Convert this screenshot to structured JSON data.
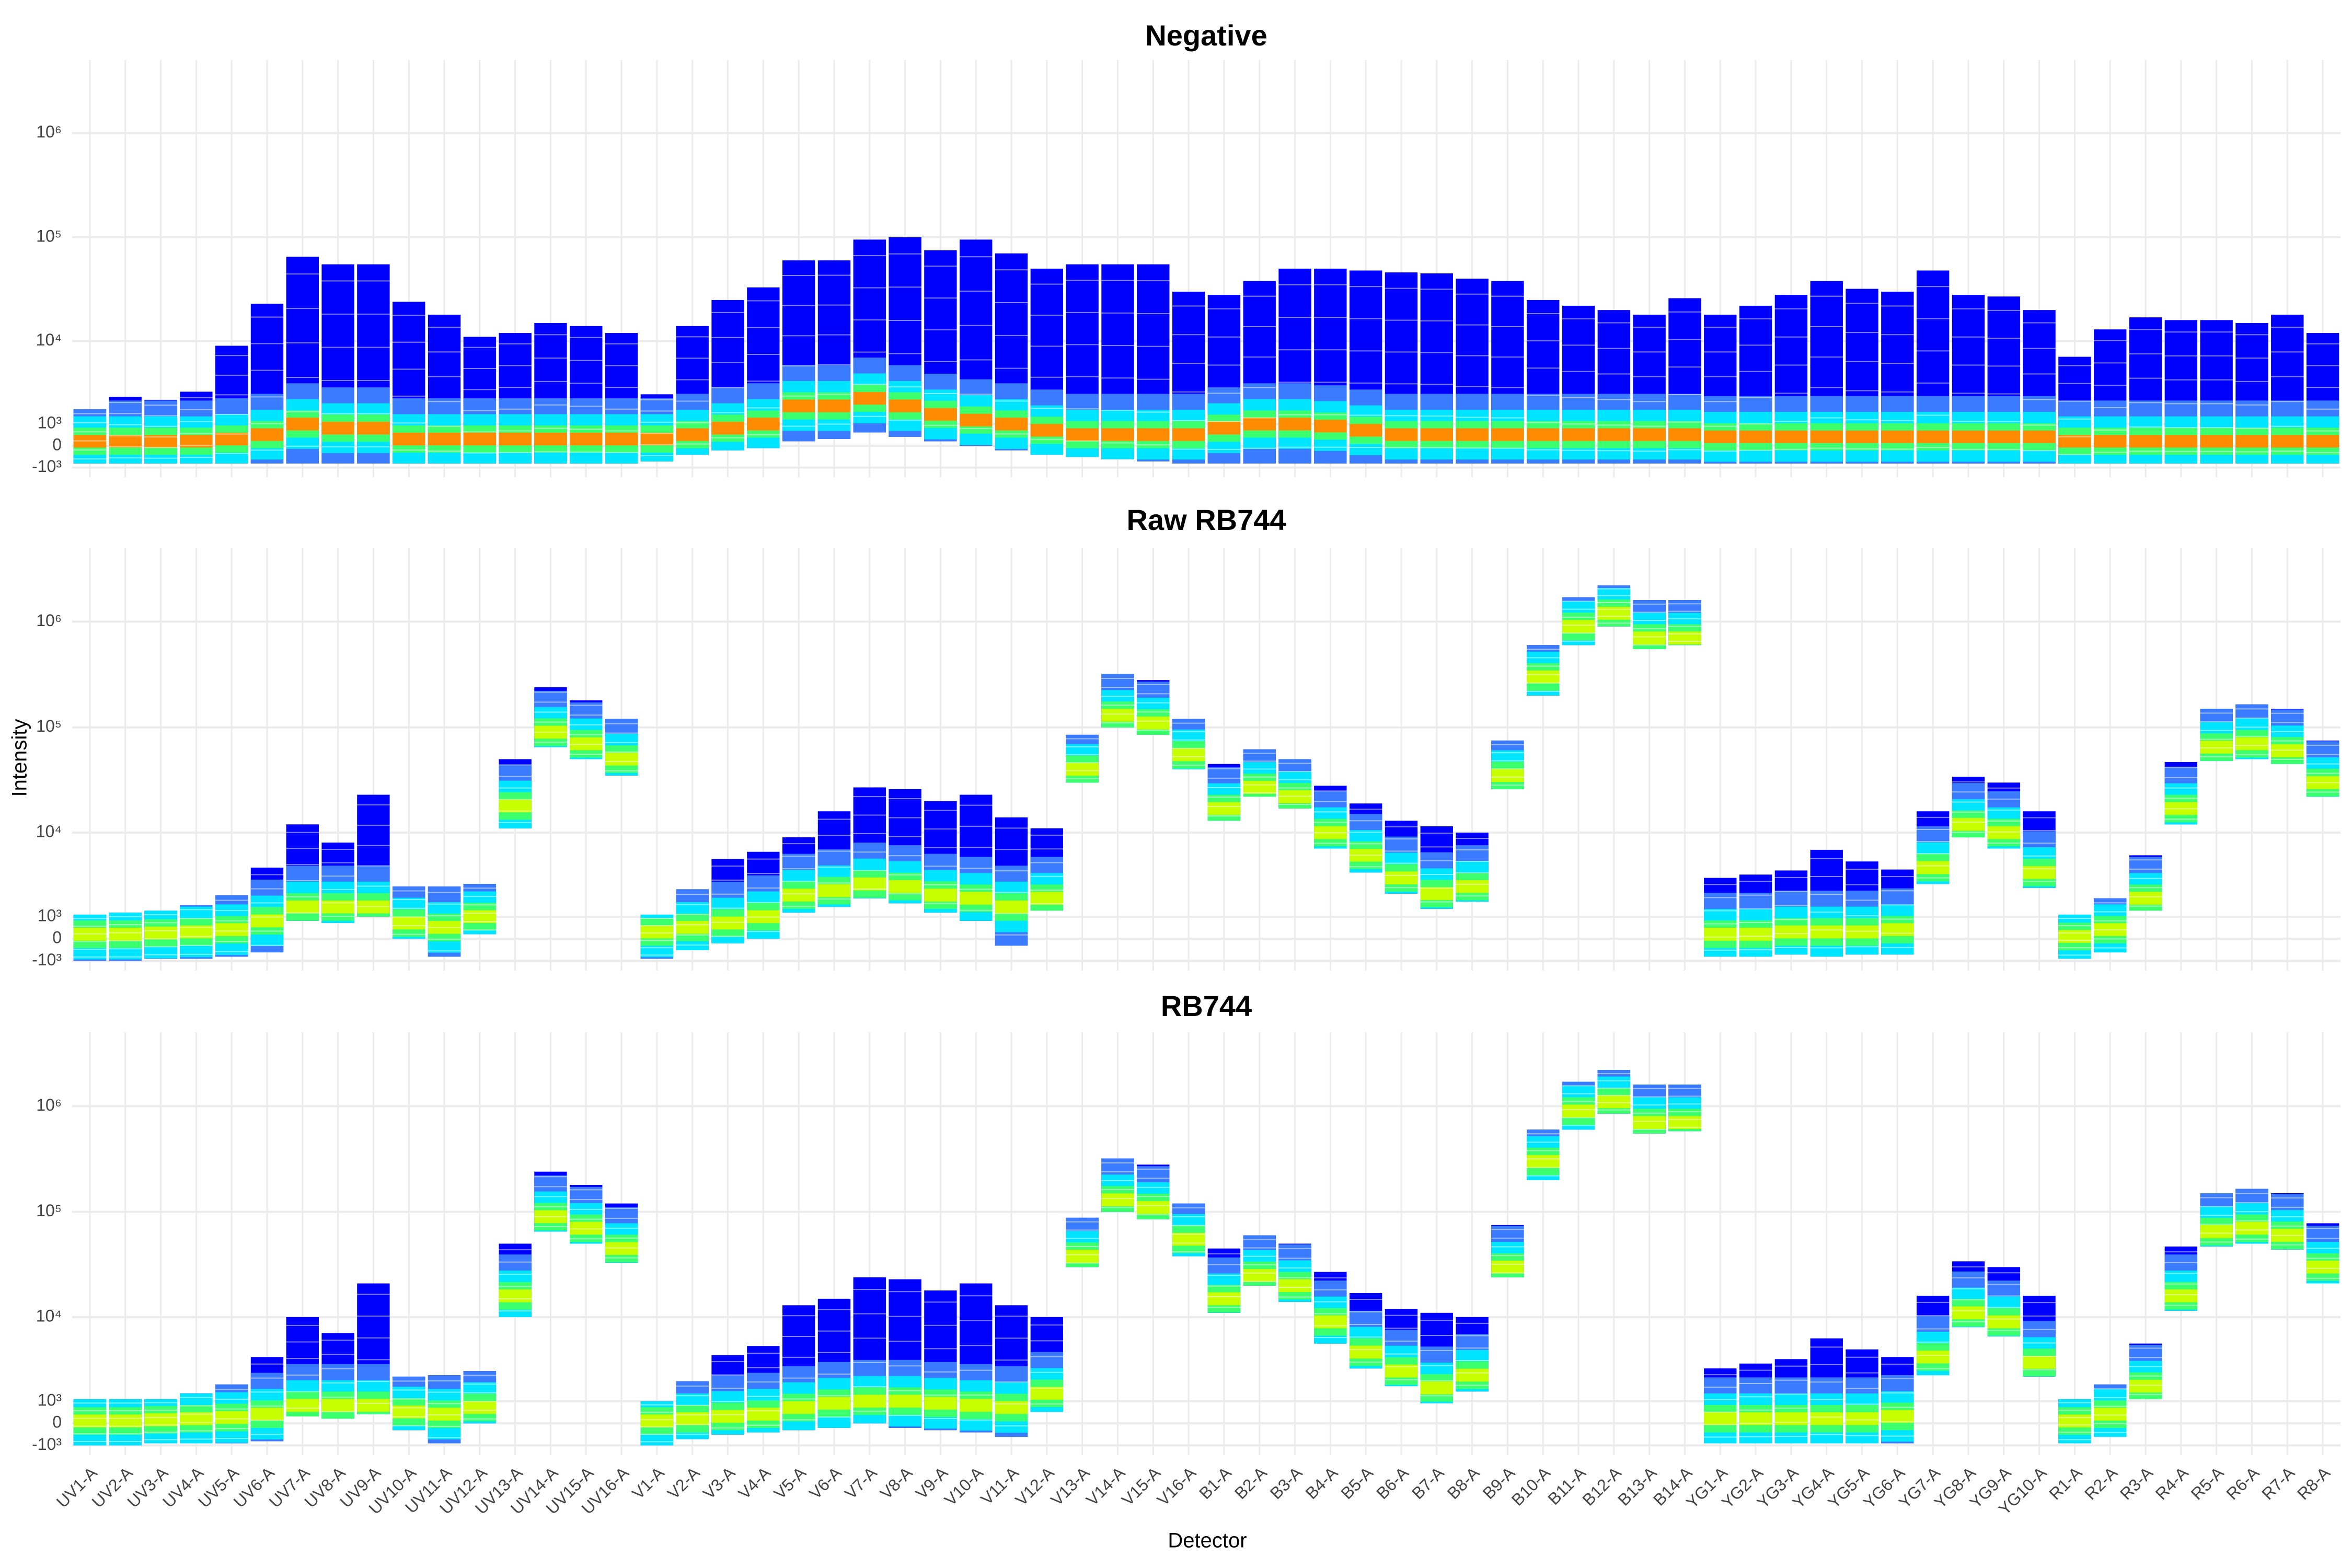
{
  "chart_data": {
    "type": "range",
    "scale": "asinh",
    "x_label": "Detector",
    "y_label": "Intensity",
    "categories": [
      "UV1-A",
      "UV2-A",
      "UV3-A",
      "UV4-A",
      "UV5-A",
      "UV6-A",
      "UV7-A",
      "UV8-A",
      "UV9-A",
      "UV10-A",
      "UV11-A",
      "UV12-A",
      "UV13-A",
      "UV14-A",
      "UV15-A",
      "UV16-A",
      "V1-A",
      "V2-A",
      "V3-A",
      "V4-A",
      "V5-A",
      "V6-A",
      "V7-A",
      "V8-A",
      "V9-A",
      "V10-A",
      "V11-A",
      "V12-A",
      "V13-A",
      "V14-A",
      "V15-A",
      "V16-A",
      "B1-A",
      "B2-A",
      "B3-A",
      "B4-A",
      "B5-A",
      "B6-A",
      "B7-A",
      "B8-A",
      "B9-A",
      "B10-A",
      "B11-A",
      "B12-A",
      "B13-A",
      "B14-A",
      "YG1-A",
      "YG2-A",
      "YG3-A",
      "YG4-A",
      "YG5-A",
      "YG6-A",
      "YG7-A",
      "YG8-A",
      "YG9-A",
      "YG10-A",
      "R1-A",
      "R2-A",
      "R3-A",
      "R4-A",
      "R5-A",
      "R6-A",
      "R7-A",
      "R8-A"
    ],
    "ylim": [
      -1500,
      5000000
    ],
    "yticks": [
      {
        "value": -1000,
        "label": "-10³"
      },
      0,
      {
        "value": 1000,
        "label": "10³"
      },
      {
        "value": 10000,
        "label": "10⁴"
      },
      {
        "value": 100000,
        "label": "10⁵"
      },
      {
        "value": 1000000,
        "label": "10⁶"
      }
    ],
    "grid": true,
    "range_color": "#0000ff",
    "panels": [
      {
        "title": "Negative",
        "peak_color": "#ff8c00",
        "low": [
          -800,
          -800,
          -800,
          -800,
          -800,
          -800,
          -800,
          -800,
          -800,
          -800,
          -800,
          -800,
          -800,
          -800,
          -800,
          -800,
          -700,
          -400,
          -200,
          -100,
          200,
          300,
          600,
          400,
          200,
          0,
          -200,
          -400,
          -500,
          -600,
          -700,
          -800,
          -800,
          -800,
          -800,
          -800,
          -800,
          -800,
          -800,
          -800,
          -800,
          -800,
          -800,
          -800,
          -800,
          -800,
          -800,
          -800,
          -800,
          -800,
          -800,
          -800,
          -800,
          -800,
          -800,
          -800,
          -800,
          -800,
          -800,
          -800,
          -800,
          -800,
          -800,
          -800
        ],
        "peak": [
          200,
          200,
          200,
          200,
          300,
          500,
          1000,
          800,
          800,
          300,
          300,
          300,
          300,
          300,
          300,
          300,
          300,
          500,
          800,
          1000,
          2000,
          2000,
          2500,
          2000,
          1500,
          1200,
          1000,
          700,
          500,
          500,
          500,
          500,
          800,
          1000,
          1000,
          900,
          700,
          500,
          500,
          500,
          500,
          500,
          500,
          500,
          500,
          500,
          400,
          400,
          400,
          400,
          400,
          400,
          400,
          400,
          400,
          400,
          200,
          200,
          200,
          200,
          200,
          200,
          200,
          200
        ],
        "high": [
          1800,
          2600,
          2400,
          3000,
          9000,
          23000,
          65000,
          55000,
          55000,
          24000,
          18000,
          11000,
          12000,
          15000,
          14000,
          12000,
          2800,
          14000,
          25000,
          33000,
          60000,
          60000,
          95000,
          100000,
          75000,
          95000,
          70000,
          50000,
          55000,
          55000,
          55000,
          30000,
          28000,
          38000,
          50000,
          50000,
          48000,
          46000,
          45000,
          40000,
          38000,
          25000,
          22000,
          20000,
          18000,
          26000,
          18000,
          22000,
          28000,
          38000,
          32000,
          30000,
          48000,
          28000,
          27000,
          20000,
          7000,
          13000,
          17000,
          16000,
          16000,
          15000,
          18000,
          12000
        ]
      },
      {
        "title": "Raw RB744",
        "peak_color": "#c8ff00",
        "low": [
          -1000,
          -1000,
          -900,
          -900,
          -800,
          -600,
          800,
          700,
          1000,
          0,
          -800,
          200,
          11000,
          65000,
          50000,
          35000,
          -900,
          -500,
          -200,
          0,
          1200,
          1500,
          2000,
          1700,
          1200,
          800,
          -300,
          1300,
          30000,
          100000,
          85000,
          40000,
          13000,
          22000,
          17000,
          7000,
          4000,
          2300,
          1400,
          1800,
          26000,
          200000,
          600000,
          900000,
          550000,
          600000,
          -800,
          -800,
          -700,
          -800,
          -700,
          -700,
          3000,
          9000,
          7000,
          2700,
          -900,
          -600,
          1300,
          12000,
          48000,
          50000,
          45000,
          22000
        ],
        "peak": [
          200,
          200,
          250,
          300,
          400,
          800,
          1500,
          1500,
          1500,
          700,
          500,
          1000,
          18000,
          90000,
          70000,
          50000,
          300,
          500,
          700,
          1000,
          2200,
          2500,
          3000,
          2800,
          2200,
          2000,
          1500,
          2000,
          40000,
          130000,
          110000,
          55000,
          17000,
          27000,
          22000,
          10000,
          6000,
          3500,
          2300,
          2800,
          35000,
          300000,
          900000,
          1200000,
          700000,
          700000,
          200,
          200,
          300,
          300,
          300,
          400,
          4500,
          12000,
          10000,
          4000,
          100,
          400,
          2000,
          17000,
          65000,
          70000,
          60000,
          30000
        ],
        "high": [
          1100,
          1200,
          1300,
          1600,
          2200,
          4500,
          12000,
          8000,
          23000,
          2800,
          2800,
          3000,
          50000,
          240000,
          180000,
          120000,
          1100,
          2600,
          5500,
          6500,
          9000,
          16000,
          27000,
          26000,
          20000,
          23000,
          14000,
          11000,
          85000,
          320000,
          280000,
          120000,
          45000,
          62000,
          50000,
          28000,
          19000,
          13000,
          11500,
          10000,
          75000,
          600000,
          1700000,
          2200000,
          1600000,
          1600000,
          3500,
          3800,
          4200,
          6800,
          5200,
          4300,
          16000,
          34000,
          30000,
          16000,
          1100,
          2000,
          6000,
          47000,
          150000,
          165000,
          150000,
          75000
        ]
      },
      {
        "title": "RB744",
        "peak_color": "#c8ff00",
        "low": [
          -1000,
          -1000,
          -900,
          -900,
          -900,
          -800,
          300,
          200,
          400,
          -300,
          -900,
          0,
          10000,
          65000,
          50000,
          33000,
          -1000,
          -700,
          -500,
          -400,
          -300,
          -200,
          0,
          -200,
          -300,
          -400,
          -600,
          500,
          30000,
          100000,
          85000,
          38000,
          11000,
          20000,
          14000,
          5500,
          3000,
          1800,
          900,
          1500,
          24000,
          200000,
          600000,
          850000,
          550000,
          580000,
          -900,
          -900,
          -900,
          -900,
          -900,
          -900,
          2500,
          8000,
          6500,
          2400,
          -900,
          -600,
          1100,
          11500,
          47000,
          50000,
          44000,
          21000
        ],
        "peak": [
          100,
          100,
          150,
          200,
          250,
          400,
          800,
          800,
          800,
          500,
          400,
          700,
          16000,
          90000,
          70000,
          45000,
          100,
          200,
          300,
          400,
          700,
          900,
          1000,
          1000,
          900,
          800,
          700,
          1400,
          38000,
          130000,
          110000,
          55000,
          15000,
          25000,
          20000,
          9000,
          4500,
          2800,
          1700,
          2500,
          30000,
          300000,
          900000,
          1100000,
          700000,
          700000,
          200,
          200,
          200,
          200,
          200,
          300,
          4000,
          11000,
          9000,
          3500,
          100,
          400,
          1800,
          16000,
          65000,
          70000,
          60000,
          30000
        ],
        "high": [
          1100,
          1100,
          1100,
          1400,
          1900,
          4000,
          10000,
          7000,
          21000,
          2400,
          2500,
          2800,
          50000,
          240000,
          180000,
          120000,
          1000,
          2100,
          4200,
          5200,
          13000,
          15000,
          24000,
          23000,
          18000,
          21000,
          13000,
          10000,
          88000,
          320000,
          280000,
          120000,
          45000,
          60000,
          50000,
          27000,
          17000,
          12000,
          11000,
          10000,
          75000,
          600000,
          1700000,
          2200000,
          1600000,
          1600000,
          3000,
          3400,
          3800,
          6200,
          4800,
          4000,
          16000,
          34000,
          30000,
          16000,
          1100,
          1900,
          5500,
          47000,
          150000,
          165000,
          150000,
          78000
        ]
      }
    ]
  }
}
